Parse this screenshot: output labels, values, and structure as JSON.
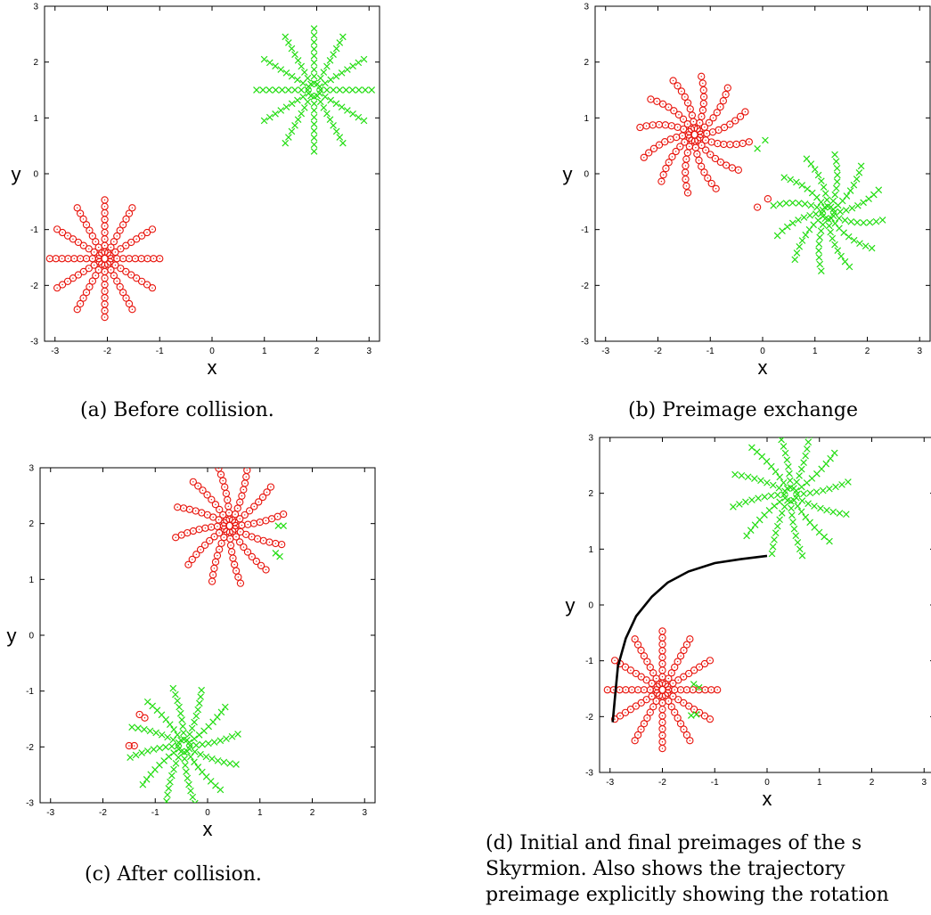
{
  "figure": {
    "panels": [
      {
        "id": "a",
        "caption_lines": [
          "(a) Before collision."
        ],
        "xlabel": "x",
        "ylabel": "y",
        "xlim": [
          -3.2,
          3.2
        ],
        "ylim": [
          -3,
          3
        ],
        "xticks": [
          "-3",
          "-2",
          "-1",
          "0",
          "1",
          "2",
          "3"
        ],
        "yticks": [
          "-3",
          "-2",
          "-1",
          "0",
          "1",
          "2",
          "3"
        ],
        "xtick_values": [
          -3,
          -2,
          -1,
          0,
          1,
          2,
          3
        ],
        "ytick_values": [
          -3,
          -2,
          -1,
          0,
          1,
          2,
          3
        ],
        "stars": [
          {
            "color": "#e8140c",
            "marker": "circle",
            "center": [
              -2.05,
              -1.52
            ],
            "arms": 12,
            "radius": 1.05,
            "points_per_arm": 9,
            "twist": 0.0
          },
          {
            "color": "#22dd11",
            "marker": "cross",
            "center": [
              1.95,
              1.5
            ],
            "arms": 12,
            "radius": 1.1,
            "points_per_arm": 9,
            "twist": 0.0
          }
        ],
        "extra_points": [],
        "trajectory": []
      },
      {
        "id": "b",
        "caption_lines": [
          "(b) Preimage exchange"
        ],
        "xlabel": "x",
        "ylabel": "y",
        "xlim": [
          -3.2,
          3.2
        ],
        "ylim": [
          -3,
          3
        ],
        "xticks": [
          "-3",
          "-2",
          "-1",
          "0",
          "1",
          "2",
          "3"
        ],
        "yticks": [
          "-3",
          "-2",
          "-1",
          "0",
          "1",
          "2",
          "3"
        ],
        "xtick_values": [
          -3,
          -2,
          -1,
          0,
          1,
          2,
          3
        ],
        "ytick_values": [
          -3,
          -2,
          -1,
          0,
          1,
          2,
          3
        ],
        "stars": [
          {
            "color": "#e8140c",
            "marker": "circle",
            "center": [
              -1.3,
              0.7
            ],
            "arms": 12,
            "radius": 1.05,
            "points_per_arm": 9,
            "twist": 0.4
          },
          {
            "color": "#22dd11",
            "marker": "cross",
            "center": [
              1.25,
              -0.7
            ],
            "arms": 12,
            "radius": 1.05,
            "points_per_arm": 9,
            "twist": 0.4
          }
        ],
        "extra_points": [
          {
            "color": "#e8140c",
            "marker": "circle",
            "x": -0.1,
            "y": -0.6
          },
          {
            "color": "#e8140c",
            "marker": "circle",
            "x": 0.1,
            "y": -0.45
          },
          {
            "color": "#22dd11",
            "marker": "cross",
            "x": -0.1,
            "y": 0.45
          },
          {
            "color": "#22dd11",
            "marker": "cross",
            "x": 0.05,
            "y": 0.6
          }
        ],
        "trajectory": []
      },
      {
        "id": "c",
        "caption_lines": [
          "(c) After collision."
        ],
        "xlabel": "x",
        "ylabel": "y",
        "xlim": [
          -3.2,
          3.2
        ],
        "ylim": [
          -3,
          3
        ],
        "xticks": [
          "-3",
          "-2",
          "-1",
          "0",
          "1",
          "2",
          "3"
        ],
        "yticks": [
          "-3",
          "-2",
          "-1",
          "0",
          "1",
          "2",
          "3"
        ],
        "xtick_values": [
          -3,
          -2,
          -1,
          0,
          1,
          2,
          3
        ],
        "ytick_values": [
          -3,
          -2,
          -1,
          0,
          1,
          2,
          3
        ],
        "stars": [
          {
            "color": "#e8140c",
            "marker": "circle",
            "center": [
              0.42,
              1.96
            ],
            "arms": 12,
            "radius": 1.05,
            "points_per_arm": 9,
            "twist": 0.2
          },
          {
            "color": "#22dd11",
            "marker": "cross",
            "center": [
              -0.45,
              -1.98
            ],
            "arms": 12,
            "radius": 1.05,
            "points_per_arm": 9,
            "twist": 0.2
          }
        ],
        "extra_points": [
          {
            "color": "#e8140c",
            "marker": "circle",
            "x": -1.3,
            "y": -1.42
          },
          {
            "color": "#e8140c",
            "marker": "circle",
            "x": -1.2,
            "y": -1.48
          },
          {
            "color": "#e8140c",
            "marker": "circle",
            "x": -1.5,
            "y": -1.98
          },
          {
            "color": "#e8140c",
            "marker": "circle",
            "x": -1.4,
            "y": -1.98
          },
          {
            "color": "#22dd11",
            "marker": "cross",
            "x": 1.35,
            "y": 1.96
          },
          {
            "color": "#22dd11",
            "marker": "cross",
            "x": 1.45,
            "y": 1.96
          },
          {
            "color": "#22dd11",
            "marker": "cross",
            "x": 1.3,
            "y": 1.47
          },
          {
            "color": "#22dd11",
            "marker": "cross",
            "x": 1.38,
            "y": 1.41
          }
        ],
        "trajectory": []
      },
      {
        "id": "d",
        "caption_lines": [
          "(d) Initial and final preimages of the s",
          "Skyrmion.    Also shows the trajectory",
          "preimage explicitly showing the rotation"
        ],
        "xlabel": "x",
        "ylabel": "y",
        "xlim": [
          -3.2,
          3.2
        ],
        "ylim": [
          -3,
          3
        ],
        "xticks": [
          "-3",
          "-2",
          "-1",
          "0",
          "1",
          "2",
          "3"
        ],
        "yticks": [
          "-3",
          "-2",
          "-1",
          "0",
          "1",
          "2",
          "3"
        ],
        "xtick_values": [
          -3,
          -2,
          -1,
          0,
          1,
          2,
          3
        ],
        "ytick_values": [
          -3,
          -2,
          -1,
          0,
          1,
          2,
          3
        ],
        "stars": [
          {
            "color": "#e8140c",
            "marker": "circle",
            "center": [
              -2.0,
              -1.52
            ],
            "arms": 12,
            "radius": 1.05,
            "points_per_arm": 9,
            "twist": 0.0
          },
          {
            "color": "#22dd11",
            "marker": "cross",
            "center": [
              0.45,
              1.98
            ],
            "arms": 12,
            "radius": 1.12,
            "points_per_arm": 9,
            "twist": 0.2
          }
        ],
        "extra_points": [
          {
            "color": "#22dd11",
            "marker": "cross",
            "x": -1.4,
            "y": -1.42
          },
          {
            "color": "#22dd11",
            "marker": "cross",
            "x": -1.3,
            "y": -1.48
          },
          {
            "color": "#22dd11",
            "marker": "cross",
            "x": -1.45,
            "y": -1.98
          },
          {
            "color": "#22dd11",
            "marker": "cross",
            "x": -1.35,
            "y": -1.96
          }
        ],
        "trajectory": [
          [
            -2.95,
            -2.1
          ],
          [
            -2.9,
            -1.6
          ],
          [
            -2.85,
            -1.1
          ],
          [
            -2.7,
            -0.6
          ],
          [
            -2.5,
            -0.2
          ],
          [
            -2.2,
            0.15
          ],
          [
            -1.9,
            0.4
          ],
          [
            -1.5,
            0.6
          ],
          [
            -1.0,
            0.75
          ],
          [
            -0.5,
            0.82
          ],
          [
            0.0,
            0.88
          ]
        ]
      }
    ]
  },
  "chart_data": [
    {
      "type": "scatter",
      "panel": "a",
      "xlabel": "x",
      "ylabel": "y",
      "xlim": [
        -3.2,
        3.2
      ],
      "ylim": [
        -3,
        3
      ],
      "series": [
        {
          "color": "red",
          "marker": "o",
          "center": [
            -2.05,
            -1.52
          ]
        },
        {
          "color": "green",
          "marker": "x",
          "center": [
            1.95,
            1.5
          ]
        }
      ]
    },
    {
      "type": "scatter",
      "panel": "b",
      "xlabel": "x",
      "ylabel": "y",
      "xlim": [
        -3.2,
        3.2
      ],
      "ylim": [
        -3,
        3
      ],
      "series": [
        {
          "color": "red",
          "marker": "o",
          "center": [
            -1.3,
            0.7
          ]
        },
        {
          "color": "green",
          "marker": "x",
          "center": [
            1.25,
            -0.7
          ]
        }
      ]
    },
    {
      "type": "scatter",
      "panel": "c",
      "xlabel": "x",
      "ylabel": "y",
      "xlim": [
        -3.2,
        3.2
      ],
      "ylim": [
        -3,
        3
      ],
      "series": [
        {
          "color": "red",
          "marker": "o",
          "center": [
            0.42,
            1.96
          ]
        },
        {
          "color": "green",
          "marker": "x",
          "center": [
            -0.45,
            -1.98
          ]
        }
      ]
    },
    {
      "type": "scatter",
      "panel": "d",
      "xlabel": "x",
      "ylabel": "y",
      "xlim": [
        -3.2,
        3.2
      ],
      "ylim": [
        -3,
        3
      ],
      "series": [
        {
          "color": "red",
          "marker": "o",
          "center": [
            -2.0,
            -1.52
          ]
        },
        {
          "color": "green",
          "marker": "x",
          "center": [
            0.45,
            1.98
          ]
        },
        {
          "color": "black",
          "marker": "line",
          "points": [
            [
              -2.95,
              -2.1
            ],
            [
              -2.7,
              -0.6
            ],
            [
              -2.2,
              0.15
            ],
            [
              -1.5,
              0.6
            ],
            [
              -0.5,
              0.82
            ],
            [
              0.0,
              0.88
            ]
          ]
        }
      ]
    }
  ]
}
